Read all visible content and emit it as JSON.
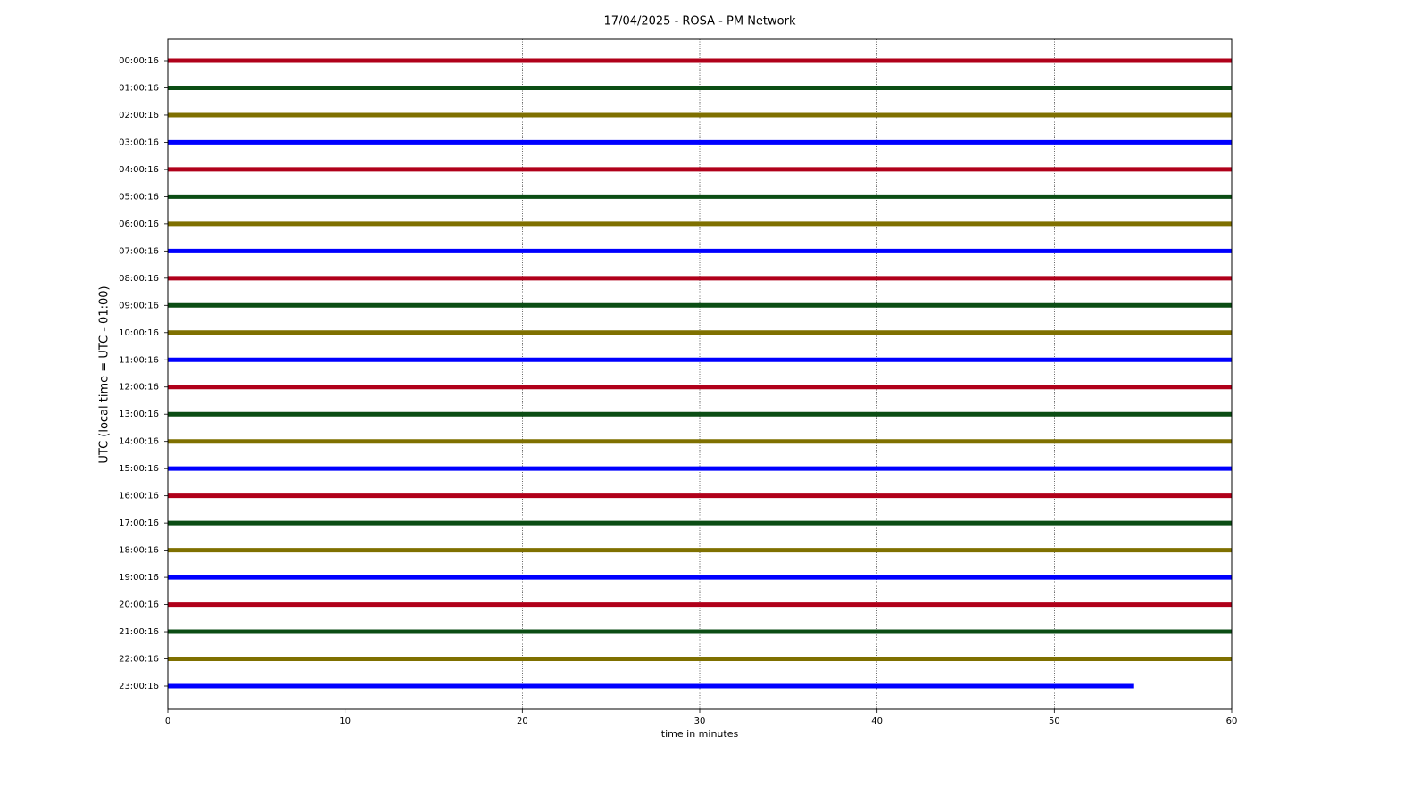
{
  "chart_data": {
    "type": "helicorder",
    "title": "17/04/2025 - ROSA - PM Network",
    "xlabel": "time in minutes",
    "ylabel": "UTC (local time = UTC - 01:00)",
    "xlim": [
      0,
      60
    ],
    "xticks": [
      0,
      10,
      20,
      30,
      40,
      50,
      60
    ],
    "grid": true,
    "categories": [
      "00:00:16",
      "01:00:16",
      "02:00:16",
      "03:00:16",
      "04:00:16",
      "05:00:16",
      "06:00:16",
      "07:00:16",
      "08:00:16",
      "09:00:16",
      "10:00:16",
      "11:00:16",
      "12:00:16",
      "13:00:16",
      "14:00:16",
      "15:00:16",
      "16:00:16",
      "17:00:16",
      "18:00:16",
      "19:00:16",
      "20:00:16",
      "21:00:16",
      "22:00:16",
      "23:00:16"
    ],
    "values": [
      60,
      60,
      60,
      60,
      60,
      60,
      60,
      60,
      60,
      60,
      60,
      60,
      60,
      60,
      60,
      60,
      60,
      60,
      60,
      60,
      60,
      60,
      60,
      54.5
    ],
    "colors": [
      "#b0001a",
      "#0b4d14",
      "#7f7000",
      "#0000ff"
    ]
  }
}
